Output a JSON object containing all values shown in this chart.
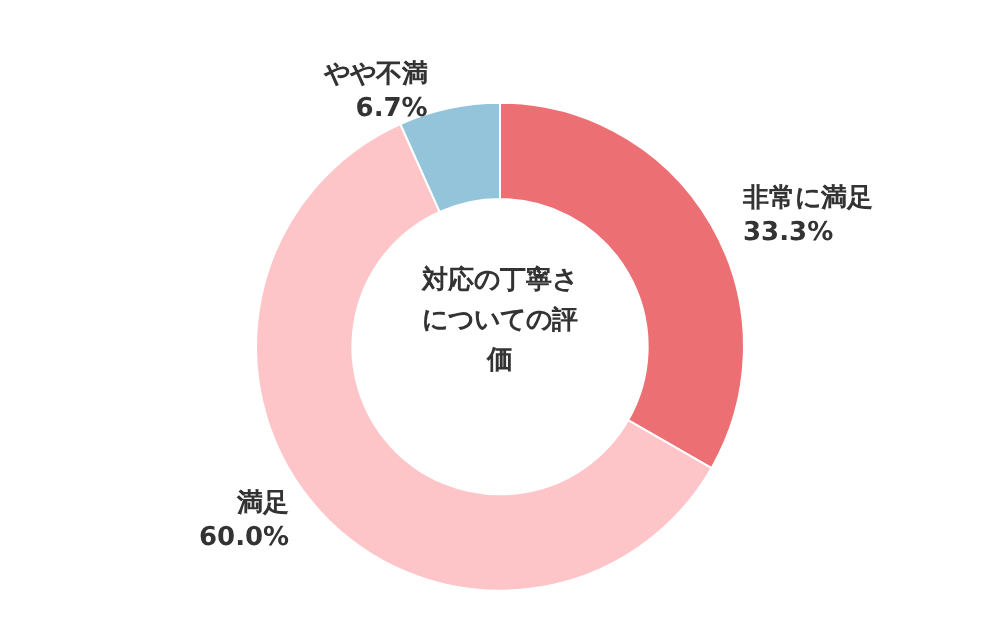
{
  "chart_data": {
    "type": "donut",
    "title": "対応の丁寧さについての評価",
    "categories": [
      "非常に満足",
      "満足",
      "やや不満"
    ],
    "values": [
      33.3,
      60.0,
      6.7
    ],
    "colors": [
      "#ec7073",
      "#fec5c8",
      "#93c4da"
    ],
    "value_labels": [
      "33.3%",
      "60.0%",
      "6.7%"
    ],
    "legend": false
  }
}
